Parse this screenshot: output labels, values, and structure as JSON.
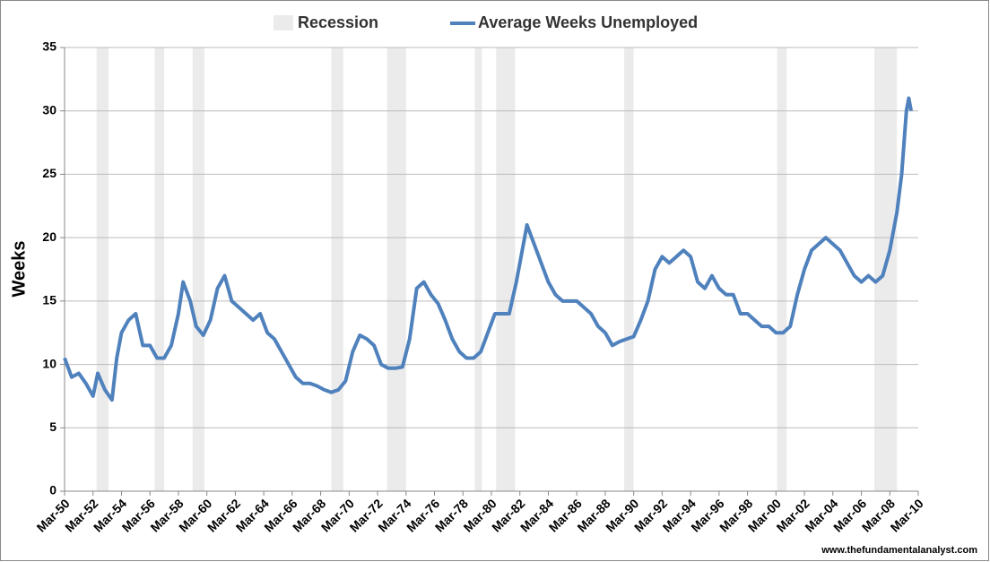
{
  "chart_data": {
    "type": "line",
    "y_label": "Weeks",
    "source": "www.thefundamentalanalyst.com",
    "ylim": [
      0,
      35
    ],
    "yticks": [
      0,
      5,
      10,
      15,
      20,
      25,
      30,
      35
    ],
    "grid": true,
    "legend": "top",
    "xlim": [
      "1950-03",
      "2010-03"
    ],
    "xticks": [
      {
        "value": "1950-03",
        "label": "Mar-50"
      },
      {
        "value": "1952-03",
        "label": "Mar-52"
      },
      {
        "value": "1954-03",
        "label": "Mar-54"
      },
      {
        "value": "1956-03",
        "label": "Mar-56"
      },
      {
        "value": "1958-03",
        "label": "Mar-58"
      },
      {
        "value": "1960-03",
        "label": "Mar-60"
      },
      {
        "value": "1962-03",
        "label": "Mar-62"
      },
      {
        "value": "1964-03",
        "label": "Mar-64"
      },
      {
        "value": "1966-03",
        "label": "Mar-66"
      },
      {
        "value": "1968-03",
        "label": "Mar-68"
      },
      {
        "value": "1970-03",
        "label": "Mar-70"
      },
      {
        "value": "1972-03",
        "label": "Mar-72"
      },
      {
        "value": "1974-03",
        "label": "Mar-74"
      },
      {
        "value": "1976-03",
        "label": "Mar-76"
      },
      {
        "value": "1978-03",
        "label": "Mar-78"
      },
      {
        "value": "1980-03",
        "label": "Mar-80"
      },
      {
        "value": "1982-03",
        "label": "Mar-82"
      },
      {
        "value": "1984-03",
        "label": "Mar-84"
      },
      {
        "value": "1986-03",
        "label": "Mar-86"
      },
      {
        "value": "1988-03",
        "label": "Mar-88"
      },
      {
        "value": "1990-03",
        "label": "Mar-90"
      },
      {
        "value": "1992-03",
        "label": "Mar-92"
      },
      {
        "value": "1994-03",
        "label": "Mar-94"
      },
      {
        "value": "1996-03",
        "label": "Mar-96"
      },
      {
        "value": "1998-03",
        "label": "Mar-98"
      },
      {
        "value": "2000-03",
        "label": "Mar-00"
      },
      {
        "value": "2002-03",
        "label": "Mar-02"
      },
      {
        "value": "2004-03",
        "label": "Mar-04"
      },
      {
        "value": "2006-03",
        "label": "Mar-06"
      },
      {
        "value": "2008-03",
        "label": "Mar-08"
      },
      {
        "value": "2010-03",
        "label": "Mar-10"
      }
    ],
    "recessions": {
      "name": "Recession",
      "color": "#ebebeb",
      "spans": [
        [
          "1952-06",
          "1953-04"
        ],
        [
          "1956-07",
          "1957-03"
        ],
        [
          "1959-03",
          "1960-01"
        ],
        [
          "1968-12",
          "1969-10"
        ],
        [
          "1972-11",
          "1974-03"
        ],
        [
          "1979-01",
          "1979-07"
        ],
        [
          "1980-07",
          "1981-11"
        ],
        [
          "1989-07",
          "1990-03"
        ],
        [
          "2000-04",
          "2000-12"
        ],
        [
          "2007-02",
          "2008-09"
        ]
      ]
    },
    "x": [
      "1950-03",
      "1950-09",
      "1951-03",
      "1951-09",
      "1952-03",
      "1952-07",
      "1953-01",
      "1953-07",
      "1953-11",
      "1954-03",
      "1954-09",
      "1955-03",
      "1955-09",
      "1956-03",
      "1956-09",
      "1957-03",
      "1957-09",
      "1958-03",
      "1958-07",
      "1959-01",
      "1959-06",
      "1959-12",
      "1960-06",
      "1960-12",
      "1961-06",
      "1961-12",
      "1962-06",
      "1962-12",
      "1963-06",
      "1963-12",
      "1964-06",
      "1964-12",
      "1965-06",
      "1965-12",
      "1966-06",
      "1966-12",
      "1967-06",
      "1967-12",
      "1968-06",
      "1968-12",
      "1969-06",
      "1969-12",
      "1970-06",
      "1970-12",
      "1971-06",
      "1971-12",
      "1972-06",
      "1972-12",
      "1973-06",
      "1973-12",
      "1974-06",
      "1974-12",
      "1975-06",
      "1975-12",
      "1976-06",
      "1976-12",
      "1977-06",
      "1977-12",
      "1978-06",
      "1978-12",
      "1979-06",
      "1979-12",
      "1980-06",
      "1980-12",
      "1981-06",
      "1981-12",
      "1982-06",
      "1982-09",
      "1983-03",
      "1983-09",
      "1984-03",
      "1984-09",
      "1985-03",
      "1985-09",
      "1986-03",
      "1986-09",
      "1987-03",
      "1987-09",
      "1988-03",
      "1988-09",
      "1989-03",
      "1989-09",
      "1990-03",
      "1990-09",
      "1991-03",
      "1991-09",
      "1992-03",
      "1992-09",
      "1993-03",
      "1993-09",
      "1994-03",
      "1994-09",
      "1995-03",
      "1995-09",
      "1996-03",
      "1996-09",
      "1997-03",
      "1997-09",
      "1998-03",
      "1998-09",
      "1999-03",
      "1999-09",
      "2000-03",
      "2000-09",
      "2001-03",
      "2001-09",
      "2002-03",
      "2002-09",
      "2003-03",
      "2003-09",
      "2004-03",
      "2004-09",
      "2005-03",
      "2005-09",
      "2006-03",
      "2006-09",
      "2007-03",
      "2007-09",
      "2008-03",
      "2008-09",
      "2009-01",
      "2009-05",
      "2009-07",
      "2009-09"
    ],
    "series": [
      {
        "name": "Average Weeks Unemployed",
        "color": "#4f81bd",
        "values": [
          10.5,
          9.0,
          9.3,
          8.5,
          7.5,
          9.3,
          8.0,
          7.2,
          10.5,
          12.5,
          13.5,
          14.0,
          11.5,
          11.5,
          10.5,
          10.5,
          11.5,
          14.0,
          16.5,
          15.0,
          13.0,
          12.3,
          13.5,
          16.0,
          17.0,
          15.0,
          14.5,
          14.0,
          13.5,
          14.0,
          12.5,
          12.0,
          11.0,
          10.0,
          9.0,
          8.5,
          8.5,
          8.3,
          8.0,
          7.8,
          8.0,
          8.7,
          11.0,
          12.3,
          12.0,
          11.5,
          10.0,
          9.7,
          9.7,
          9.8,
          12.0,
          16.0,
          16.5,
          15.5,
          14.8,
          13.5,
          12.0,
          11.0,
          10.5,
          10.5,
          11.0,
          12.5,
          14.0,
          14.0,
          14.0,
          16.5,
          19.5,
          21.0,
          19.5,
          18.0,
          16.5,
          15.5,
          15.0,
          15.0,
          15.0,
          14.5,
          14.0,
          13.0,
          12.5,
          11.5,
          11.8,
          12.0,
          12.2,
          13.5,
          15.0,
          17.5,
          18.5,
          18.0,
          18.5,
          19.0,
          18.5,
          16.5,
          16.0,
          17.0,
          16.0,
          15.5,
          15.5,
          14.0,
          14.0,
          13.5,
          13.0,
          13.0,
          12.5,
          12.5,
          13.0,
          15.5,
          17.5,
          19.0,
          19.5,
          20.0,
          19.5,
          19.0,
          18.0,
          17.0,
          16.5,
          17.0,
          16.5,
          17.0,
          19.0,
          22.0,
          25.0,
          30.0,
          31.0,
          30.0
        ]
      }
    ]
  }
}
